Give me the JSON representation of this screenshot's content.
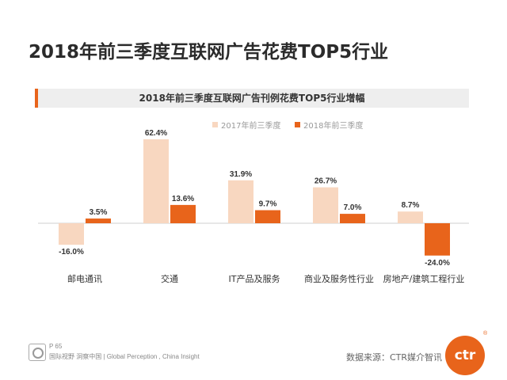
{
  "page": {
    "title": "2018年前三季度互联网广告花费TOP5行业",
    "footer_page": "P 65",
    "footer_text": "国际视野 洞察中国 | Global Perception , China Insight",
    "source": "数据来源：CTR媒介智讯",
    "logo_text": "ctr",
    "logo_mark": "®"
  },
  "colors": {
    "accent": "#e8641b",
    "light": "#f8d7c0"
  },
  "chart_data": {
    "type": "bar",
    "title": "2018年前三季度互联网广告刊例花费TOP5行业增幅",
    "categories": [
      "邮电通讯",
      "交通",
      "IT产品及服务",
      "商业及服务性行业",
      "房地产/建筑工程行业"
    ],
    "series": [
      {
        "name": "2017年前三季度",
        "color": "#f8d7c0",
        "values": [
          -16.0,
          62.4,
          31.9,
          26.7,
          8.7
        ]
      },
      {
        "name": "2018年前三季度",
        "color": "#e8641b",
        "values": [
          3.5,
          13.6,
          9.7,
          7.0,
          -24.0
        ]
      }
    ],
    "value_labels": [
      [
        "-16.0%",
        "62.4%",
        "31.9%",
        "26.7%",
        "8.7%"
      ],
      [
        "3.5%",
        "13.6%",
        "9.7%",
        "7.0%",
        "-24.0%"
      ]
    ],
    "legend_position": "top-right",
    "grid": false
  }
}
